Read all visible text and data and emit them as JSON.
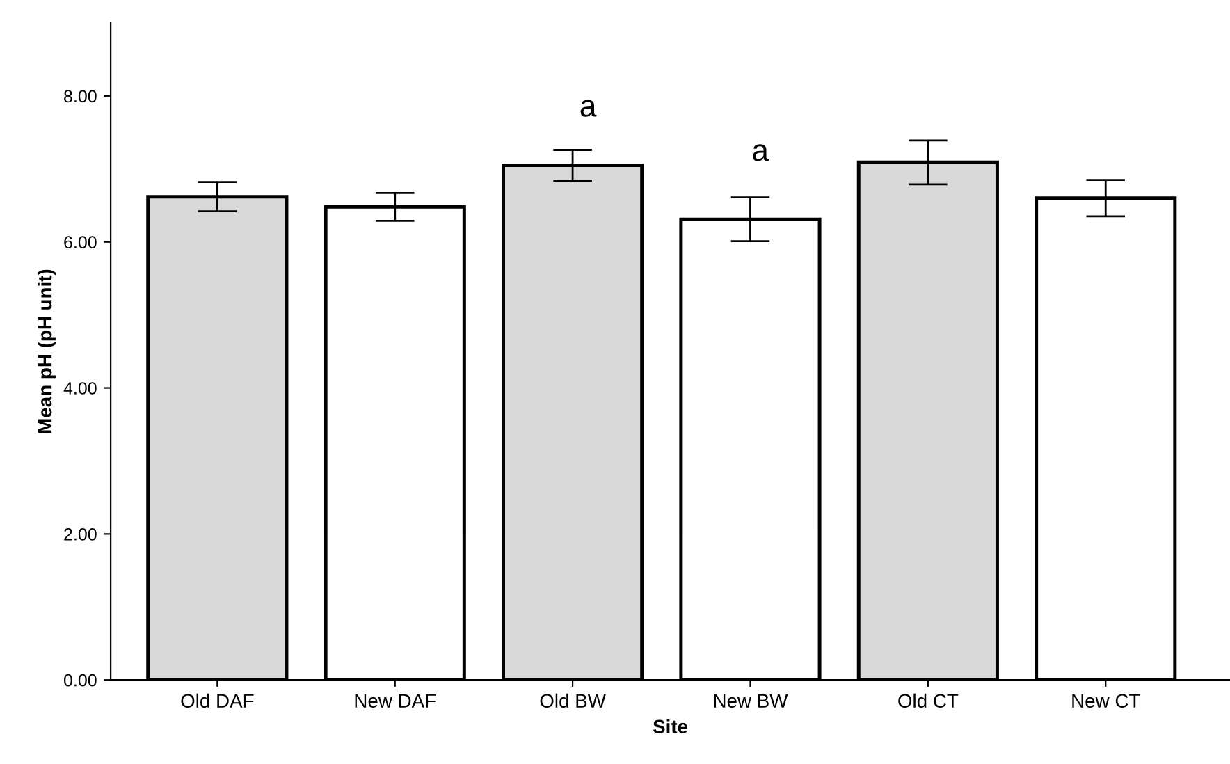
{
  "chart_data": {
    "type": "bar",
    "xlabel": "Site",
    "ylabel": "Mean pH (pH unit)",
    "categories": [
      "Old DAF",
      "New DAF",
      "Old BW",
      "New BW",
      "Old CT",
      "New CT"
    ],
    "values": [
      6.62,
      6.48,
      7.05,
      6.31,
      7.09,
      6.6
    ],
    "errors": [
      0.2,
      0.19,
      0.21,
      0.3,
      0.3,
      0.25
    ],
    "colors": [
      "#d9d9d9",
      "#ffffff",
      "#d9d9d9",
      "#ffffff",
      "#d9d9d9",
      "#ffffff"
    ],
    "ylim": [
      0,
      9
    ],
    "yticks": [
      {
        "value": 0,
        "label": "0.00"
      },
      {
        "value": 2,
        "label": "2.00"
      },
      {
        "value": 4,
        "label": "4.00"
      },
      {
        "value": 6,
        "label": "6.00"
      },
      {
        "value": 8,
        "label": "8.00"
      }
    ],
    "annotations": [
      "a",
      "a"
    ],
    "grid": false
  }
}
